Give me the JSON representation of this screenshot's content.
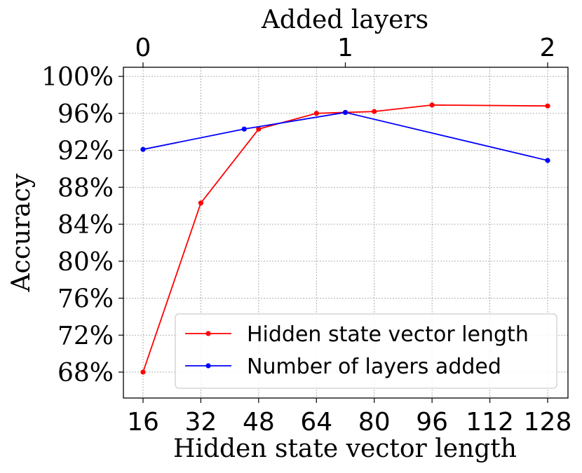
{
  "chart_data": {
    "type": "line",
    "title": "",
    "xlabel": "Hidden state vector length",
    "ylabel": "Accuracy",
    "top_xlabel": "Added layers",
    "x_ticks": [
      "16",
      "32",
      "48",
      "64",
      "80",
      "96",
      "112",
      "128"
    ],
    "top_x_ticks": [
      "0",
      "1",
      "2"
    ],
    "y_ticks": [
      "68%",
      "72%",
      "76%",
      "80%",
      "84%",
      "88%",
      "92%",
      "96%",
      "100%"
    ],
    "xlim": [
      16,
      128
    ],
    "ylim": [
      65,
      101
    ],
    "top_xlim": [
      0,
      2
    ],
    "grid": true,
    "legend_position": "lower-right",
    "series": [
      {
        "name": "Hidden state vector length",
        "axis": "bottom",
        "color": "#ff0000",
        "x": [
          16,
          32,
          48,
          64,
          72,
          80,
          96,
          128
        ],
        "y": [
          68.0,
          86.3,
          94.3,
          96.0,
          96.1,
          96.2,
          96.9,
          96.8
        ]
      },
      {
        "name": "Number of layers added",
        "axis": "top",
        "color": "#0000ff",
        "x": [
          0,
          0.5,
          1,
          2
        ],
        "y": [
          92.1,
          94.3,
          96.1,
          90.9
        ]
      }
    ]
  }
}
